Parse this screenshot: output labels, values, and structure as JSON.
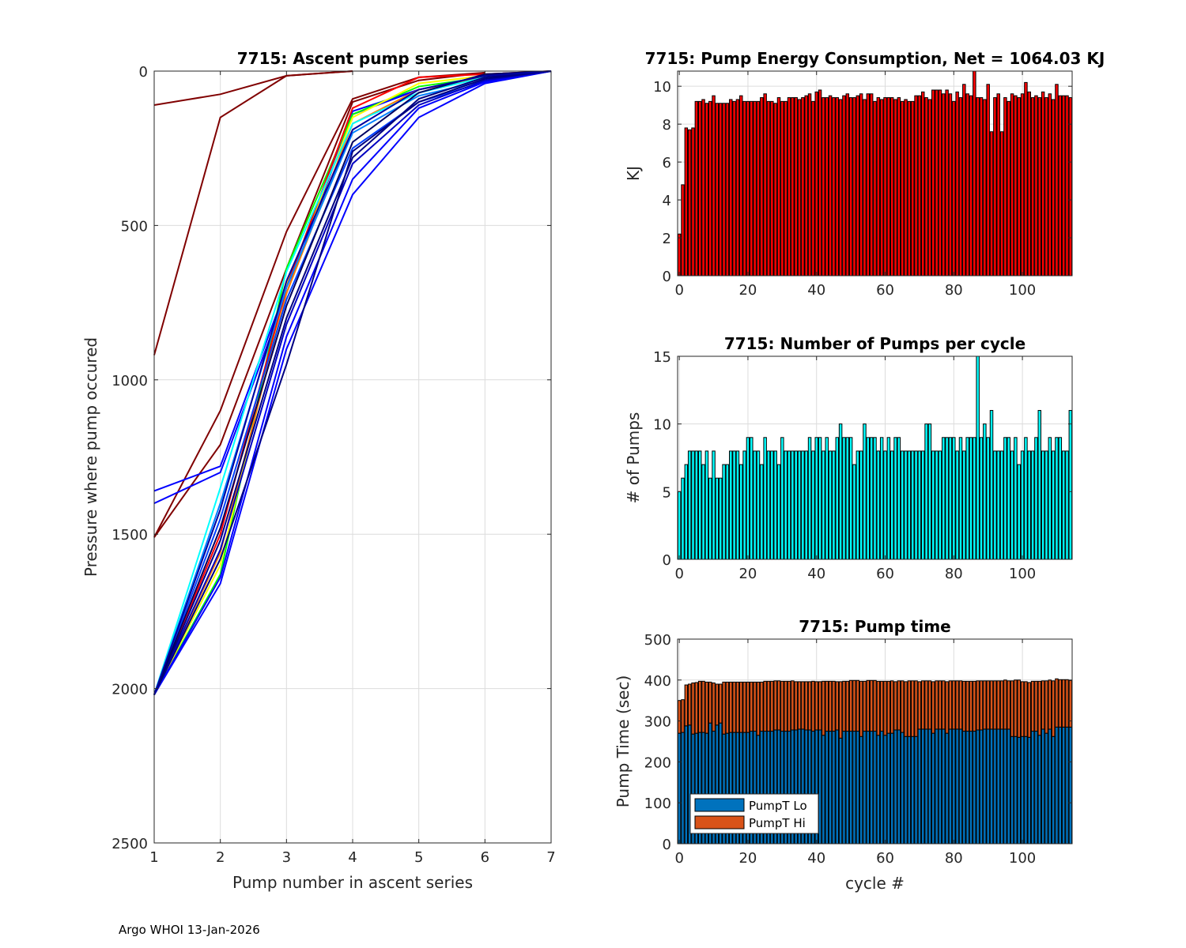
{
  "footer": "Argo WHOI 13-Jan-2026",
  "chart_data": [
    {
      "type": "line",
      "title": "7715: Ascent pump series",
      "xlabel": "Pump number in ascent series",
      "ylabel": "Pressure where pump occured",
      "xlim": [
        1,
        7
      ],
      "ylim": [
        0,
        2500
      ],
      "y_reversed": true,
      "grid": true,
      "xticks": [
        "1",
        "2",
        "3",
        "4",
        "5",
        "6",
        "7"
      ],
      "yticks": [
        "0",
        "500",
        "1000",
        "1500",
        "2000",
        "2500"
      ],
      "series": [
        {
          "color": "#800000",
          "x": [
            1,
            2,
            3,
            4
          ],
          "y": [
            110,
            75,
            15,
            0
          ]
        },
        {
          "color": "#800000",
          "x": [
            1,
            2,
            3,
            4
          ],
          "y": [
            920,
            150,
            15,
            0
          ]
        },
        {
          "color": "#800000",
          "x": [
            1,
            2,
            3,
            4,
            5,
            6
          ],
          "y": [
            1510,
            1100,
            520,
            90,
            20,
            5
          ]
        },
        {
          "color": "#800000",
          "x": [
            1,
            2,
            3,
            4,
            5,
            6
          ],
          "y": [
            1510,
            1210,
            640,
            100,
            30,
            5
          ]
        },
        {
          "color": "#0000ff",
          "x": [
            1,
            2,
            3,
            4,
            5,
            6,
            7
          ],
          "y": [
            1360,
            1280,
            700,
            130,
            60,
            20,
            0
          ]
        },
        {
          "color": "#0000ff",
          "x": [
            1,
            2,
            3,
            4,
            5,
            6,
            7
          ],
          "y": [
            1400,
            1300,
            720,
            140,
            60,
            20,
            0
          ]
        },
        {
          "color": "#00ff00",
          "x": [
            1,
            2,
            3,
            4,
            5,
            6,
            7
          ],
          "y": [
            2020,
            1630,
            640,
            140,
            50,
            20,
            0
          ]
        },
        {
          "color": "#ffff00",
          "x": [
            1,
            2,
            3,
            4,
            5,
            6,
            7
          ],
          "y": [
            2020,
            1600,
            690,
            150,
            40,
            15,
            0
          ]
        },
        {
          "color": "#ff8000",
          "x": [
            1,
            2,
            3,
            4,
            5,
            6,
            7
          ],
          "y": [
            2020,
            1560,
            720,
            170,
            60,
            20,
            0
          ]
        },
        {
          "color": "#ff0000",
          "x": [
            1,
            2,
            3,
            4,
            5,
            6,
            7
          ],
          "y": [
            2020,
            1500,
            700,
            120,
            20,
            10,
            0
          ]
        },
        {
          "color": "#00ffff",
          "x": [
            1,
            2,
            3,
            4,
            5,
            6,
            7
          ],
          "y": [
            2020,
            1350,
            650,
            170,
            70,
            20,
            0
          ]
        },
        {
          "color": "#0080ff",
          "x": [
            1,
            2,
            3,
            4,
            5,
            6,
            7
          ],
          "y": [
            2020,
            1400,
            700,
            200,
            80,
            30,
            0
          ]
        },
        {
          "color": "#0040ff",
          "x": [
            1,
            2,
            3,
            4,
            5,
            6,
            7
          ],
          "y": [
            2020,
            1450,
            740,
            250,
            100,
            35,
            0
          ]
        },
        {
          "color": "#0000ff",
          "x": [
            1,
            2,
            3,
            4,
            5,
            6,
            7
          ],
          "y": [
            2020,
            1660,
            900,
            400,
            150,
            40,
            0
          ]
        },
        {
          "color": "#0000ff",
          "x": [
            1,
            2,
            3,
            4,
            5,
            6,
            7
          ],
          "y": [
            2020,
            1640,
            860,
            350,
            120,
            35,
            0
          ]
        },
        {
          "color": "#0000c0",
          "x": [
            1,
            2,
            3,
            4,
            5,
            6,
            7
          ],
          "y": [
            2020,
            1550,
            820,
            300,
            110,
            30,
            0
          ]
        },
        {
          "color": "#000080",
          "x": [
            1,
            2,
            3,
            4,
            5,
            6,
            7
          ],
          "y": [
            2020,
            1520,
            800,
            280,
            90,
            20,
            0
          ]
        },
        {
          "color": "#000060",
          "x": [
            1,
            2,
            3,
            4,
            5,
            6,
            7
          ],
          "y": [
            2020,
            1480,
            760,
            230,
            70,
            10,
            0
          ]
        },
        {
          "color": "#000080",
          "x": [
            1,
            2,
            3,
            4,
            5,
            6,
            7
          ],
          "y": [
            2020,
            1580,
            950,
            260,
            100,
            25,
            0
          ]
        },
        {
          "color": "#0000a0",
          "x": [
            1,
            2,
            3,
            4,
            5,
            6,
            7
          ],
          "y": [
            2020,
            1420,
            680,
            190,
            60,
            15,
            0
          ]
        }
      ]
    },
    {
      "type": "bar",
      "title": "7715: Pump Energy Consumption,  Net = 1064.03 KJ",
      "xlabel": "",
      "ylabel": "KJ",
      "xlim": [
        -0.5,
        114.5
      ],
      "ylim": [
        0,
        10.8
      ],
      "grid": true,
      "xticks": [
        "0",
        "20",
        "40",
        "60",
        "80",
        "100"
      ],
      "yticks": [
        "0",
        "2",
        "4",
        "6",
        "8",
        "10"
      ],
      "color": "#ff0000",
      "values": [
        2.2,
        4.8,
        7.8,
        7.7,
        7.8,
        9.2,
        9.2,
        9.3,
        9.1,
        9.2,
        9.5,
        9.1,
        9.1,
        9.1,
        9.1,
        9.3,
        9.2,
        9.3,
        9.5,
        9.2,
        9.2,
        9.2,
        9.2,
        9.2,
        9.4,
        9.6,
        9.2,
        9.2,
        9.1,
        9.4,
        9.2,
        9.2,
        9.4,
        9.4,
        9.4,
        9.3,
        9.4,
        9.5,
        9.6,
        9.2,
        9.7,
        9.8,
        9.4,
        9.4,
        9.5,
        9.4,
        9.4,
        9.3,
        9.5,
        9.6,
        9.4,
        9.4,
        9.5,
        9.6,
        9.3,
        9.6,
        9.6,
        9.2,
        9.4,
        9.3,
        9.4,
        9.4,
        9.4,
        9.3,
        9.4,
        9.2,
        9.3,
        9.2,
        9.2,
        9.5,
        9.5,
        9.7,
        9.4,
        9.3,
        9.8,
        9.8,
        9.8,
        9.6,
        9.8,
        9.6,
        9.2,
        9.7,
        9.4,
        10.1,
        9.6,
        9.5,
        10.8,
        9.4,
        9.4,
        9.3,
        10.1,
        7.6,
        9.4,
        9.6,
        7.6,
        9.4,
        9.2,
        9.6,
        9.5,
        9.4,
        9.6,
        10.2,
        9.7,
        9.4,
        9.5,
        9.4,
        9.7,
        9.4,
        9.6,
        9.3,
        10.1,
        9.5,
        9.5,
        9.5,
        9.4
      ]
    },
    {
      "type": "bar",
      "title": "7715: Number of Pumps per cycle",
      "xlabel": "",
      "ylabel": "# of Pumps",
      "xlim": [
        -0.5,
        114.5
      ],
      "ylim": [
        0,
        15
      ],
      "grid": true,
      "xticks": [
        "0",
        "20",
        "40",
        "60",
        "80",
        "100"
      ],
      "yticks": [
        "0",
        "5",
        "10",
        "15"
      ],
      "color": "#00ffff",
      "values": [
        5,
        6,
        7,
        8,
        8,
        8,
        8,
        7,
        8,
        6,
        8,
        6,
        6,
        7,
        7,
        8,
        8,
        8,
        7,
        8,
        9,
        9,
        8,
        8,
        7,
        9,
        8,
        8,
        8,
        7,
        9,
        8,
        8,
        8,
        8,
        8,
        8,
        8,
        9,
        8,
        9,
        9,
        8,
        9,
        8,
        8,
        9,
        10,
        9,
        9,
        9,
        7,
        8,
        8,
        10,
        9,
        9,
        9,
        8,
        9,
        8,
        9,
        8,
        9,
        9,
        8,
        8,
        8,
        8,
        8,
        8,
        8,
        10,
        10,
        8,
        8,
        8,
        9,
        9,
        9,
        9,
        8,
        9,
        8,
        9,
        9,
        9,
        15,
        9,
        10,
        9,
        11,
        8,
        8,
        8,
        9,
        9,
        8,
        9,
        7,
        8,
        9,
        8,
        8,
        9,
        11,
        8,
        8,
        9,
        8,
        9,
        9,
        8,
        8,
        11
      ]
    },
    {
      "type": "bar",
      "stacked": true,
      "title": "7715: Pump time",
      "xlabel": "cycle #",
      "ylabel": "Pump Time (sec)",
      "xlim": [
        -0.5,
        114.5
      ],
      "ylim": [
        0,
        500
      ],
      "grid": true,
      "xticks": [
        "0",
        "20",
        "40",
        "60",
        "80",
        "100"
      ],
      "yticks": [
        "0",
        "100",
        "200",
        "300",
        "400",
        "500"
      ],
      "legend": "bottom-left",
      "series": [
        {
          "name": "PumpT Lo",
          "color": "#0072bd",
          "values": [
            270,
            272,
            288,
            290,
            268,
            270,
            272,
            272,
            270,
            295,
            275,
            290,
            295,
            268,
            270,
            272,
            272,
            272,
            272,
            272,
            272,
            275,
            275,
            265,
            275,
            275,
            275,
            275,
            278,
            278,
            275,
            275,
            275,
            278,
            278,
            280,
            280,
            278,
            278,
            275,
            278,
            278,
            265,
            275,
            275,
            275,
            278,
            258,
            275,
            275,
            275,
            275,
            275,
            262,
            275,
            275,
            275,
            275,
            265,
            275,
            265,
            270,
            270,
            278,
            278,
            272,
            262,
            262,
            262,
            262,
            280,
            280,
            280,
            280,
            270,
            280,
            280,
            280,
            270,
            280,
            280,
            280,
            280,
            275,
            275,
            275,
            275,
            278,
            278,
            280,
            280,
            280,
            280,
            280,
            280,
            280,
            280,
            262,
            262,
            260,
            262,
            262,
            260,
            275,
            275,
            265,
            280,
            270,
            280,
            262,
            285,
            285,
            285,
            285,
            285
          ]
        },
        {
          "name": "PumpT Hi",
          "color": "#d95319",
          "values": [
            80,
            80,
            100,
            100,
            125,
            124,
            125,
            125,
            125,
            100,
            118,
            100,
            95,
            127,
            125,
            123,
            123,
            123,
            123,
            123,
            123,
            120,
            120,
            130,
            120,
            122,
            122,
            122,
            120,
            120,
            122,
            122,
            122,
            120,
            118,
            116,
            116,
            118,
            118,
            122,
            118,
            118,
            132,
            122,
            122,
            122,
            118,
            138,
            122,
            122,
            124,
            124,
            124,
            135,
            122,
            124,
            124,
            124,
            132,
            122,
            132,
            127,
            128,
            118,
            120,
            126,
            134,
            136,
            136,
            136,
            116,
            118,
            118,
            118,
            126,
            118,
            118,
            118,
            126,
            118,
            118,
            118,
            118,
            122,
            122,
            122,
            122,
            120,
            120,
            118,
            118,
            118,
            118,
            118,
            118,
            120,
            118,
            136,
            138,
            140,
            134,
            134,
            134,
            122,
            122,
            132,
            118,
            128,
            120,
            136,
            118,
            116,
            116,
            116,
            114
          ]
        }
      ]
    }
  ]
}
